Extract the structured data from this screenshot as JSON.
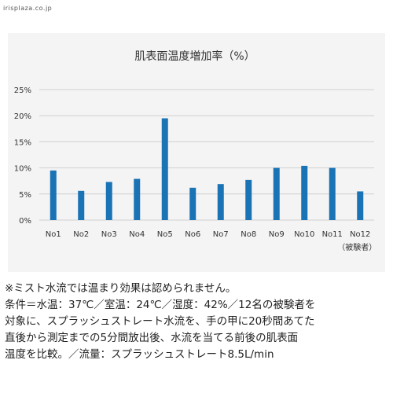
{
  "site_label": "irisplaza.co.jp",
  "chart_data": {
    "type": "bar",
    "title": "肌表面温度増加率（%）",
    "categories": [
      "No1",
      "No2",
      "No3",
      "No4",
      "No5",
      "No6",
      "No7",
      "No8",
      "No9",
      "No10",
      "No11",
      "No12"
    ],
    "values": [
      9.5,
      5.6,
      7.3,
      7.9,
      19.5,
      6.2,
      6.9,
      7.7,
      10.0,
      10.4,
      10.0,
      5.5
    ],
    "x_sublabel": "（被験者）",
    "ylim": [
      0,
      25
    ],
    "yticks": [
      0,
      5,
      10,
      15,
      20,
      25
    ],
    "ytick_suffix": "%",
    "grid": true,
    "bar_color": "#1a73b5"
  },
  "notes": [
    "※ミスト水流では温まり効果は認められません。",
    "条件＝水温：37℃／室温：24℃／湿度：42%／12名の被験者を",
    "対象に、スプラッシュストレート水流を、手の甲に20秒間あてた",
    "直後から測定までの5分間放出後、水流を当てる前後の肌表面",
    "温度を比較。／流量：スプラッシュストレート8.5L/min"
  ]
}
